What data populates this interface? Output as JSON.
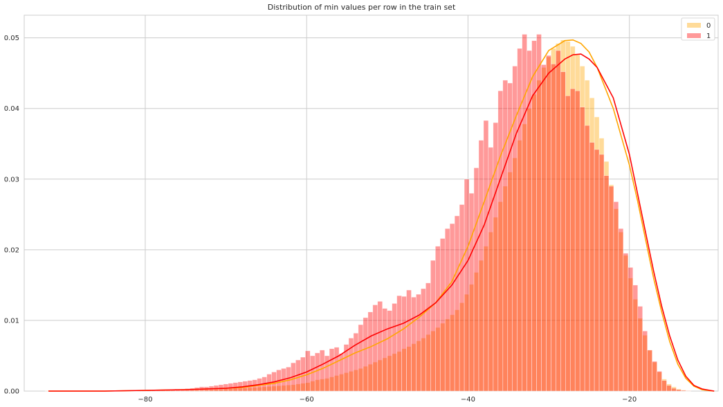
{
  "chart_data": {
    "type": "bar",
    "title": "Distribution of min values per row in the train set",
    "xlabel": "",
    "ylabel": "",
    "xlim": [
      -95,
      -9
    ],
    "ylim": [
      0,
      0.0532
    ],
    "xticks": [
      -80,
      -60,
      -40,
      -20
    ],
    "xtick_labels": [
      "−80",
      "−60",
      "−40",
      "−20"
    ],
    "yticks": [
      0.0,
      0.01,
      0.02,
      0.03,
      0.04,
      0.05
    ],
    "ytick_labels": [
      "0.00",
      "0.01",
      "0.02",
      "0.03",
      "0.04",
      "0.05"
    ],
    "grid": true,
    "legend_position": "top-right",
    "series": [
      {
        "name": "0",
        "color": "#ffa500",
        "hist_opacity": 0.4,
        "bin_edges_range": [
          -92.4,
          -12.4
        ],
        "hist_values": [
          5e-05,
          5e-05,
          5e-05,
          5e-05,
          5e-05,
          5e-05,
          5e-05,
          5e-05,
          5e-05,
          5e-05,
          5e-05,
          5e-05,
          5e-05,
          5e-05,
          5e-05,
          5e-05,
          5e-05,
          5e-05,
          5e-05,
          5e-05,
          5e-05,
          5e-05,
          5e-05,
          5e-05,
          5e-05,
          5e-05,
          5e-05,
          5e-05,
          5e-05,
          8e-05,
          0.0001,
          0.00012,
          0.00014,
          0.00016,
          0.00019,
          0.00022,
          0.00025,
          0.00028,
          0.00032,
          0.00035,
          0.00038,
          0.0004,
          0.00045,
          0.0005,
          0.00055,
          0.0006,
          0.00065,
          0.0007,
          0.00075,
          0.0008,
          0.00085,
          0.0009,
          0.001,
          0.0011,
          0.0012,
          0.0014,
          0.0016,
          0.0017,
          0.0018,
          0.002,
          0.0022,
          0.0024,
          0.0026,
          0.0028,
          0.003,
          0.0032,
          0.0035,
          0.0038,
          0.0041,
          0.0044,
          0.0047,
          0.005,
          0.0053,
          0.0056,
          0.006,
          0.0063,
          0.0067,
          0.0071,
          0.0075,
          0.008,
          0.0085,
          0.009,
          0.0096,
          0.0102,
          0.0108,
          0.0115,
          0.0125,
          0.0137,
          0.0151,
          0.0168,
          0.0185,
          0.0205,
          0.0225,
          0.0246,
          0.0268,
          0.029,
          0.031,
          0.033,
          0.0355,
          0.0378,
          0.04,
          0.042,
          0.044,
          0.0458,
          0.0473,
          0.0485,
          0.0492,
          0.0497,
          0.0495,
          0.0488,
          0.0476,
          0.046,
          0.044,
          0.0415,
          0.0388,
          0.0358,
          0.0325,
          0.0292,
          0.0258,
          0.0225,
          0.0192,
          0.016,
          0.013,
          0.0103,
          0.0079,
          0.0058,
          0.0041,
          0.0027,
          0.0017,
          0.001,
          0.0006,
          0.0003,
          0.00015,
          8e-05
        ],
        "kde_x": [
          -92,
          -85,
          -80,
          -75,
          -70,
          -68,
          -66,
          -64,
          -62,
          -60,
          -58,
          -56,
          -54,
          -52,
          -50,
          -48,
          -46,
          -44,
          -42,
          -40,
          -38,
          -36,
          -34,
          -32,
          -30,
          -28,
          -27,
          -26,
          -25,
          -24,
          -22,
          -20,
          -19,
          -18,
          -17,
          -16,
          -15,
          -14,
          -13,
          -12,
          -11,
          -10,
          -9.5
        ],
        "kde_y": [
          0.0,
          0.0,
          0.0001,
          0.0002,
          0.0004,
          0.0005,
          0.0008,
          0.0011,
          0.0016,
          0.0023,
          0.0032,
          0.0043,
          0.0054,
          0.0063,
          0.0074,
          0.0088,
          0.0105,
          0.0125,
          0.0155,
          0.0205,
          0.0268,
          0.0332,
          0.039,
          0.0445,
          0.0482,
          0.0496,
          0.0497,
          0.0492,
          0.048,
          0.0458,
          0.04,
          0.032,
          0.027,
          0.0215,
          0.016,
          0.0112,
          0.007,
          0.0038,
          0.0018,
          0.0007,
          0.0002,
          5e-05,
          0.0
        ]
      },
      {
        "name": "1",
        "color": "#ff0000",
        "hist_opacity": 0.4,
        "bin_edges_range": [
          -92.4,
          -12.4
        ],
        "hist_values": [
          0.0,
          0.0,
          0.0,
          0.0,
          0.0,
          0.0,
          0.0,
          0.0,
          0.0,
          0.0,
          0.0,
          5e-05,
          5e-05,
          5e-05,
          5e-05,
          5e-05,
          5e-05,
          5e-05,
          5e-05,
          5e-05,
          5e-05,
          0.0001,
          0.0001,
          0.00015,
          0.0002,
          0.0002,
          0.00025,
          0.0003,
          0.0003,
          0.00035,
          0.0004,
          0.0005,
          0.0006,
          0.0006,
          0.0007,
          0.0008,
          0.0009,
          0.001,
          0.0011,
          0.0012,
          0.0013,
          0.0014,
          0.0015,
          0.0016,
          0.0018,
          0.002,
          0.0024,
          0.0027,
          0.003,
          0.0032,
          0.0034,
          0.004,
          0.0044,
          0.0048,
          0.0057,
          0.005,
          0.0054,
          0.0058,
          0.005,
          0.006,
          0.0062,
          0.0053,
          0.0066,
          0.0075,
          0.0082,
          0.0094,
          0.0104,
          0.0112,
          0.0122,
          0.0127,
          0.0117,
          0.0114,
          0.0124,
          0.0135,
          0.0134,
          0.0143,
          0.0133,
          0.0137,
          0.0145,
          0.0153,
          0.0185,
          0.0205,
          0.0216,
          0.023,
          0.0237,
          0.0248,
          0.0264,
          0.03,
          0.028,
          0.0316,
          0.0355,
          0.0383,
          0.0345,
          0.038,
          0.0425,
          0.044,
          0.0436,
          0.046,
          0.0485,
          0.0505,
          0.0482,
          0.0496,
          0.0505,
          0.0462,
          0.0475,
          0.0463,
          0.0482,
          0.0452,
          0.0418,
          0.0428,
          0.0425,
          0.0402,
          0.0376,
          0.0352,
          0.0342,
          0.0335,
          0.0305,
          0.029,
          0.0268,
          0.023,
          0.0195,
          0.0175,
          0.015,
          0.012,
          0.0085,
          0.0058,
          0.0042,
          0.0028,
          0.0015,
          0.0008,
          0.0004,
          0.0002,
          0.0001,
          5e-05
        ],
        "kde_x": [
          -92,
          -85,
          -80,
          -75,
          -70,
          -68,
          -66,
          -64,
          -62,
          -60,
          -58,
          -56,
          -54,
          -52,
          -50,
          -48,
          -46,
          -44,
          -42,
          -40,
          -38,
          -36,
          -34,
          -32,
          -30,
          -28,
          -27,
          -26,
          -25,
          -24,
          -22,
          -20,
          -19,
          -18,
          -17,
          -16,
          -15,
          -14,
          -13,
          -12,
          -11,
          -10,
          -9.5
        ],
        "kde_y": [
          0.0,
          0.0,
          0.0001,
          0.0002,
          0.0004,
          0.0006,
          0.0009,
          0.0013,
          0.0019,
          0.0027,
          0.0038,
          0.005,
          0.0065,
          0.0078,
          0.0088,
          0.0096,
          0.0108,
          0.0125,
          0.015,
          0.0185,
          0.0235,
          0.03,
          0.0365,
          0.0418,
          0.045,
          0.047,
          0.0476,
          0.0477,
          0.047,
          0.0458,
          0.0415,
          0.0335,
          0.028,
          0.0225,
          0.017,
          0.012,
          0.0078,
          0.0044,
          0.0021,
          0.0008,
          0.0003,
          0.0001,
          0.0
        ]
      }
    ]
  }
}
